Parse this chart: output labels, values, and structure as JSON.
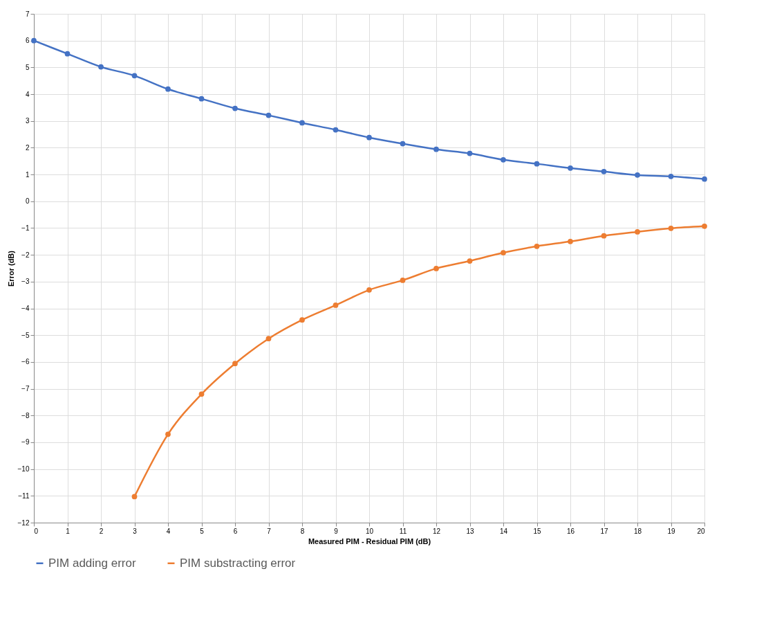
{
  "chart_data": {
    "type": "line",
    "xlabel": "Measured PIM - Residual PIM (dB)",
    "ylabel": "Error (dB)",
    "x": [
      0,
      1,
      2,
      3,
      4,
      5,
      6,
      7,
      8,
      9,
      10,
      11,
      12,
      13,
      14,
      15,
      16,
      17,
      18,
      19,
      20
    ],
    "series": [
      {
        "name": "PIM adding error",
        "color": "#4472c4",
        "values": [
          6.0,
          5.51,
          5.02,
          4.69,
          4.19,
          3.83,
          3.47,
          3.21,
          2.93,
          2.67,
          2.38,
          2.15,
          1.94,
          1.79,
          1.55,
          1.4,
          1.24,
          1.11,
          0.98,
          0.93,
          0.83
        ]
      },
      {
        "name": "PIM substracting error",
        "color": "#ed7d31",
        "values": [
          null,
          null,
          null,
          -11.03,
          -8.7,
          -7.2,
          -6.06,
          -5.13,
          -4.43,
          -3.88,
          -3.31,
          -2.95,
          -2.51,
          -2.23,
          -1.92,
          -1.68,
          -1.5,
          -1.29,
          -1.14,
          -1.01,
          -0.93
        ]
      }
    ],
    "xlim": [
      0,
      20
    ],
    "xticks": [
      0,
      1,
      2,
      3,
      4,
      5,
      6,
      7,
      8,
      9,
      10,
      11,
      12,
      13,
      14,
      15,
      16,
      17,
      18,
      19,
      20
    ],
    "ylim": [
      -12,
      7
    ],
    "yticks": [
      -12,
      -11,
      -10,
      -9,
      -8,
      -7,
      -6,
      -5,
      -4,
      -3,
      -2,
      -1,
      0,
      1,
      2,
      3,
      4,
      5,
      6,
      7
    ],
    "grid": true,
    "legend": "bottom",
    "marker": "circle",
    "line_style": "solid"
  }
}
